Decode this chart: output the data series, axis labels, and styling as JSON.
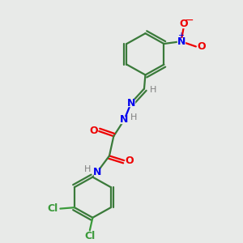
{
  "bg_color": "#e8eae8",
  "bond_color": "#3a7a3a",
  "N_color": "#0000ee",
  "O_color": "#ee0000",
  "Cl_color": "#3a9a3a",
  "H_color": "#808080",
  "figsize": [
    3.0,
    3.0
  ],
  "dpi": 100,
  "xlim": [
    0,
    10
  ],
  "ylim": [
    0,
    10
  ]
}
